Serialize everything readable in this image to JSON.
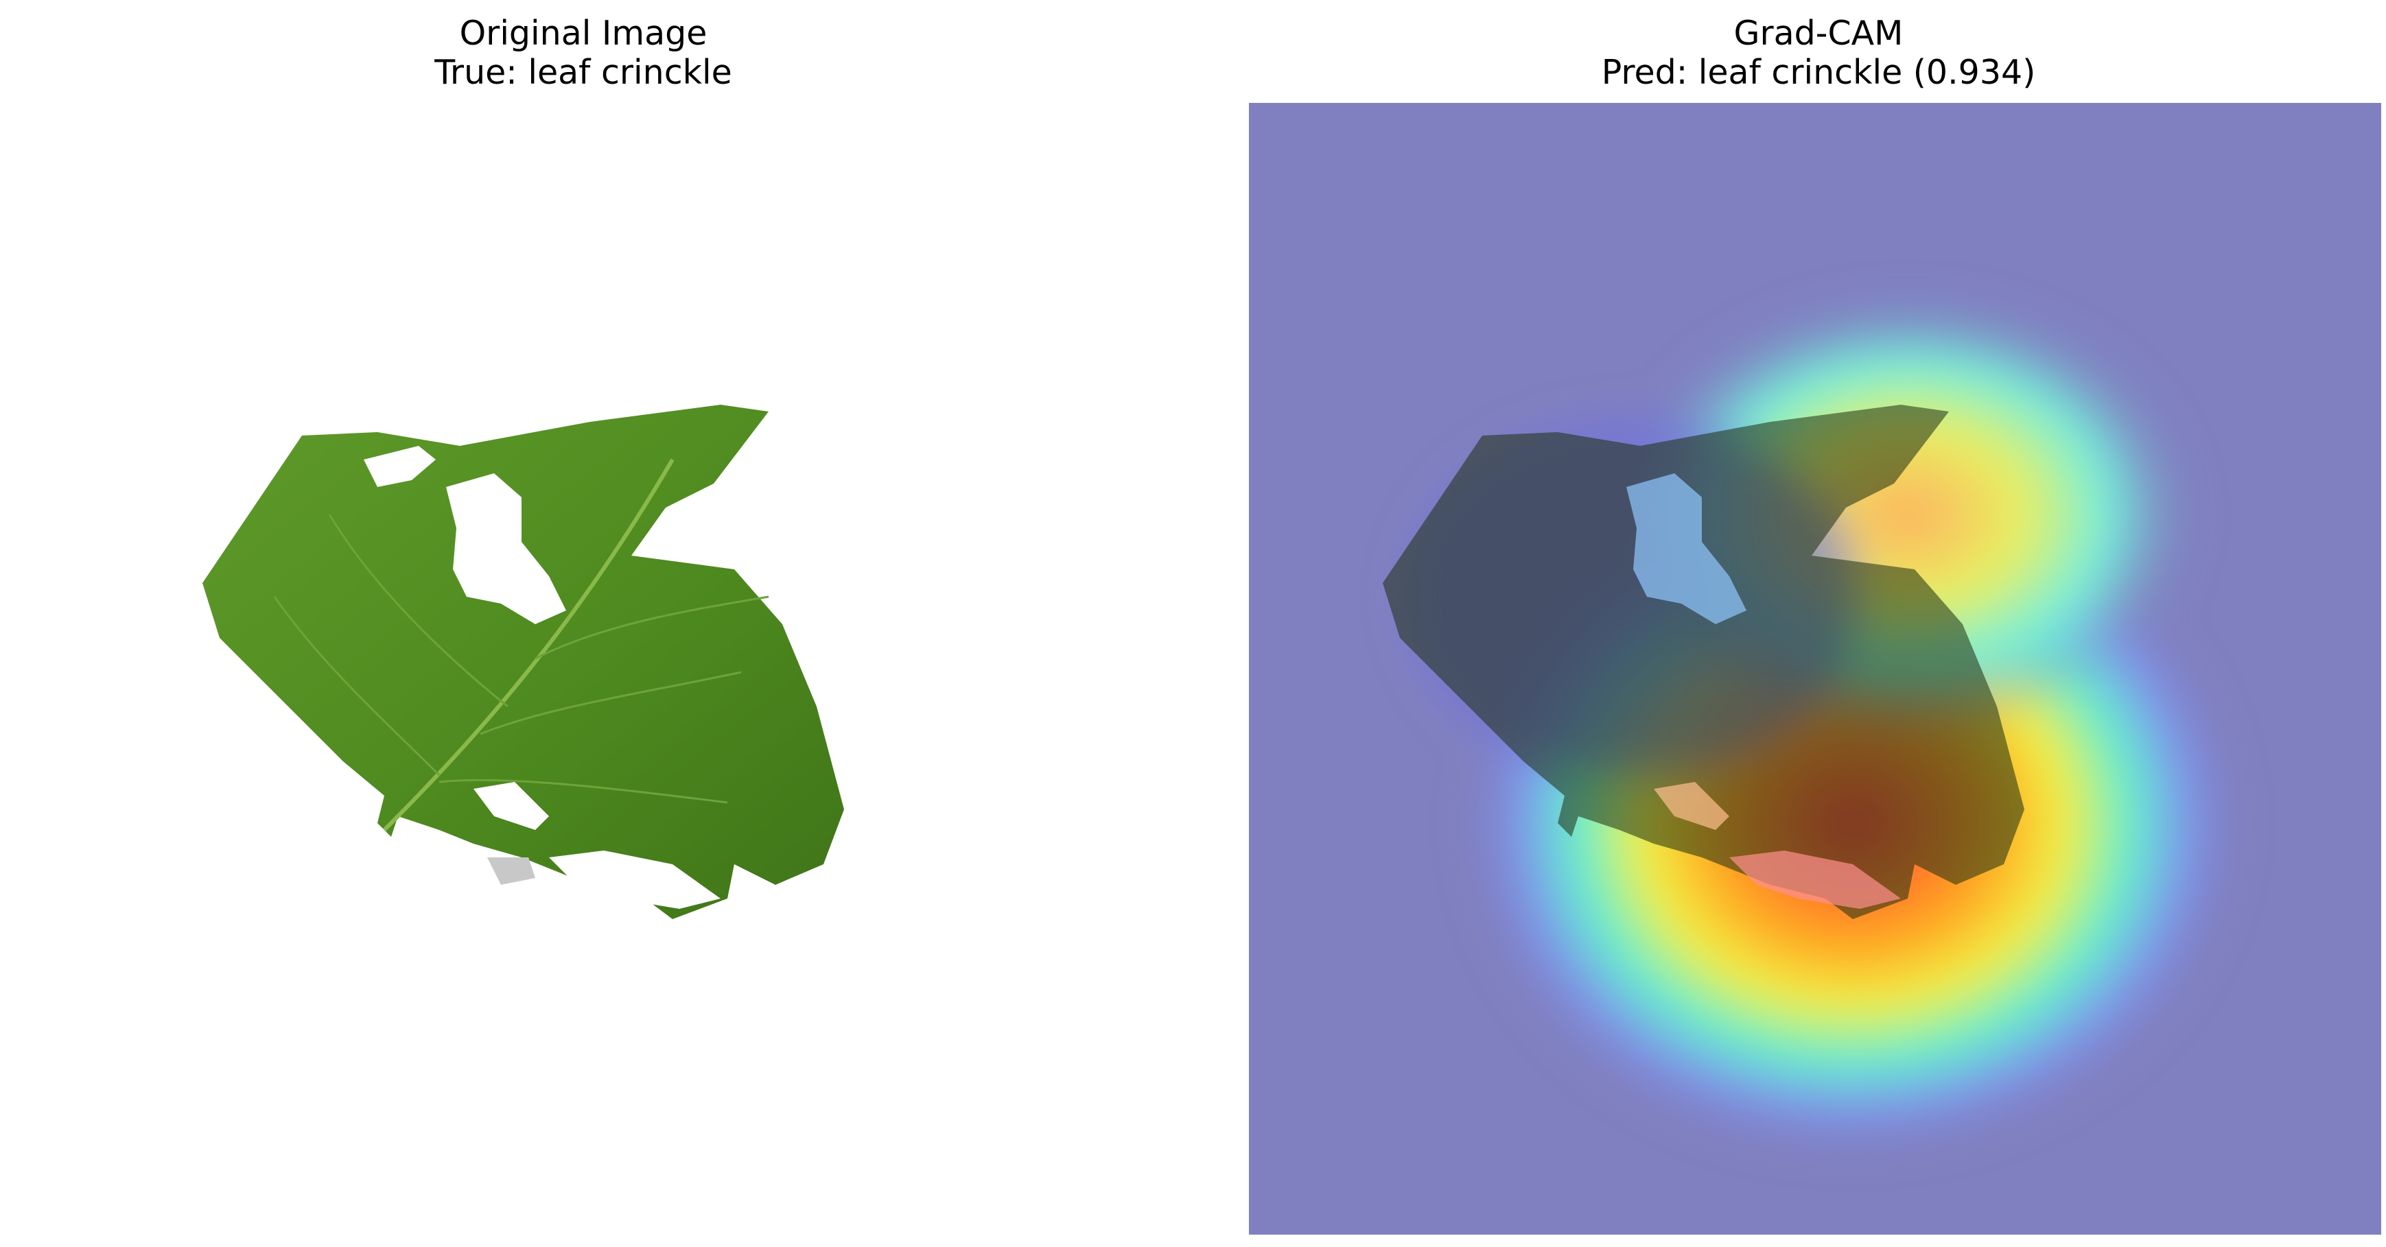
{
  "panels": {
    "left": {
      "title": "Original Image",
      "subtitle": "True: leaf crinckle",
      "image_icon": "leaf-photo"
    },
    "right": {
      "title": "Grad-CAM",
      "subtitle": "Pred: leaf crinckle (0.934)",
      "image_icon": "gradcam-heatmap-overlay",
      "overlay_color": "#8080c0"
    }
  }
}
